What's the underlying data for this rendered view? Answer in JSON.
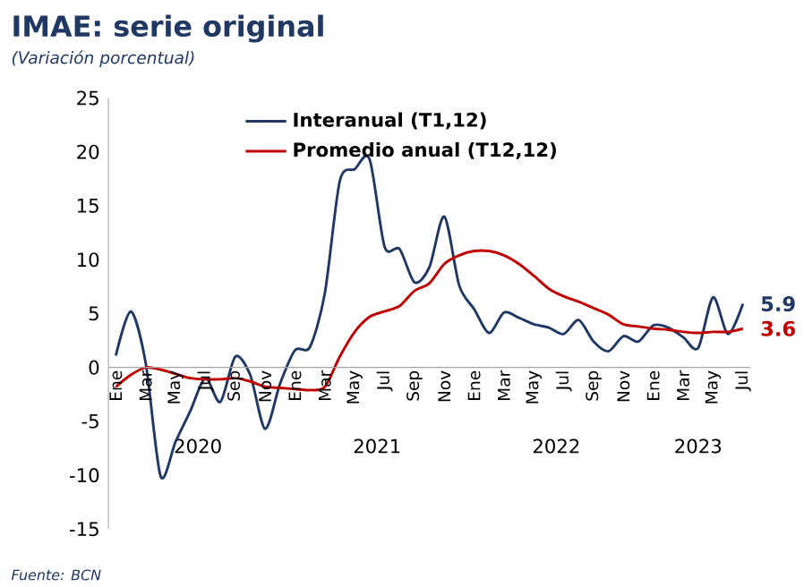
{
  "chart_data": {
    "type": "line",
    "title": "IMAE: serie original",
    "subtitle": "(Variación porcentual)",
    "categories": [
      "Ene",
      null,
      "Mar",
      null,
      "May",
      null,
      "Jul",
      null,
      "Sep",
      null,
      "Nov",
      null,
      "Ene",
      null,
      "Mar",
      null,
      "May",
      null,
      "Jul",
      null,
      "Sep",
      null,
      "Nov",
      null,
      "Ene",
      null,
      "Mar",
      null,
      "May",
      null,
      "Jul",
      null,
      "Sep",
      null,
      "Nov",
      null,
      "Ene",
      null,
      "Mar",
      null,
      "May",
      null,
      "Jul"
    ],
    "series": [
      {
        "name": "Interanual (T1,12)",
        "color": "#1f3864",
        "values": [
          1.1,
          5.2,
          0.4,
          -10.1,
          -6.9,
          -4,
          -1,
          -3.2,
          1,
          -0.7,
          -5.7,
          -1.5,
          1.6,
          1.9,
          6.9,
          17.3,
          18.4,
          19.3,
          11.2,
          11,
          7.9,
          9.3,
          14,
          7.6,
          5.4,
          3.2,
          5.1,
          4.6,
          4,
          3.7,
          3.1,
          4.4,
          2.4,
          1.5,
          2.9,
          2.4,
          3.9,
          3.7,
          2.8,
          1.8,
          6.5,
          3.1,
          5.9
        ],
        "value_labels": [
          null,
          null,
          null,
          null,
          null,
          null,
          null,
          null,
          null,
          null,
          null,
          null,
          null,
          null,
          null,
          null,
          null,
          null,
          null,
          null,
          null,
          null,
          null,
          null,
          null,
          null,
          null,
          null,
          null,
          null,
          null,
          null,
          null,
          null,
          null,
          null,
          null,
          null,
          null,
          null,
          null,
          null,
          "5.9"
        ]
      },
      {
        "name": "Promedio anual (T12,12)",
        "color": "#c00000",
        "values": [
          -1.8,
          -0.7,
          0,
          -0.2,
          -0.6,
          -1,
          -1.1,
          -1.1,
          -1,
          -1.3,
          -1.8,
          -1.9,
          -2,
          -2.1,
          -1.8,
          1,
          3.3,
          4.7,
          5.2,
          5.7,
          7.1,
          7.8,
          9.6,
          10.4,
          10.8,
          10.8,
          10.4,
          9.6,
          8.5,
          7.3,
          6.6,
          6.1,
          5.5,
          4.9,
          4,
          3.8,
          3.6,
          3.5,
          3.3,
          3.2,
          3.3,
          3.3,
          3.6
        ],
        "value_labels": [
          null,
          null,
          null,
          null,
          null,
          null,
          null,
          null,
          null,
          null,
          null,
          null,
          null,
          null,
          null,
          null,
          null,
          null,
          null,
          null,
          null,
          null,
          null,
          null,
          null,
          null,
          null,
          null,
          null,
          null,
          null,
          null,
          null,
          null,
          null,
          null,
          null,
          null,
          null,
          null,
          null,
          null,
          "3.6"
        ]
      }
    ],
    "ylim": [
      -15,
      25
    ],
    "yticks": [
      -15,
      -10,
      -5,
      0,
      5,
      10,
      15,
      20,
      25
    ],
    "grid": false,
    "legend": "top left",
    "marker": "none",
    "line_style": "solid",
    "annotations": [
      "2020",
      "2021",
      "2022",
      "2023",
      "Fuente: BCN"
    ]
  }
}
